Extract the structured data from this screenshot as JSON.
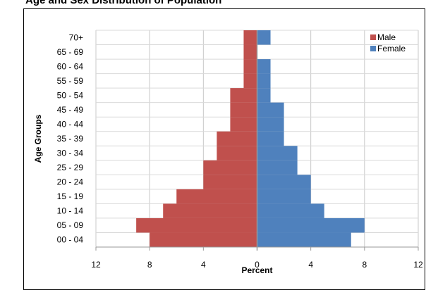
{
  "chart_data": {
    "type": "bar",
    "orientation": "horizontal",
    "title": "Age and Sex Distribution of Population",
    "xlabel": "Percent",
    "ylabel": "Age Groups",
    "categories": [
      "00 - 04",
      "05 - 09",
      "10 - 14",
      "15 - 19",
      "20 - 24",
      "25 - 29",
      "30 - 34",
      "35 - 39",
      "40 - 44",
      "45 - 49",
      "50 - 54",
      "55 - 59",
      "60 - 64",
      "65 - 69",
      "70+"
    ],
    "series": [
      {
        "name": "Male",
        "color": "#c0504d",
        "values": [
          8,
          9,
          7,
          6,
          4,
          4,
          3,
          3,
          2,
          2,
          2,
          1,
          1,
          1,
          1
        ]
      },
      {
        "name": "Female",
        "color": "#4f81bd",
        "values": [
          7,
          8,
          5,
          4,
          4,
          3,
          3,
          2,
          2,
          2,
          1,
          1,
          1,
          0,
          1
        ]
      }
    ],
    "xlim": [
      -12,
      12
    ],
    "xticks": [
      -12,
      -8,
      -4,
      0,
      4,
      8,
      12
    ],
    "xtick_labels": [
      "12",
      "8",
      "4",
      "0",
      "4",
      "8",
      "12"
    ],
    "grid": true,
    "legend_position": "top-right"
  }
}
